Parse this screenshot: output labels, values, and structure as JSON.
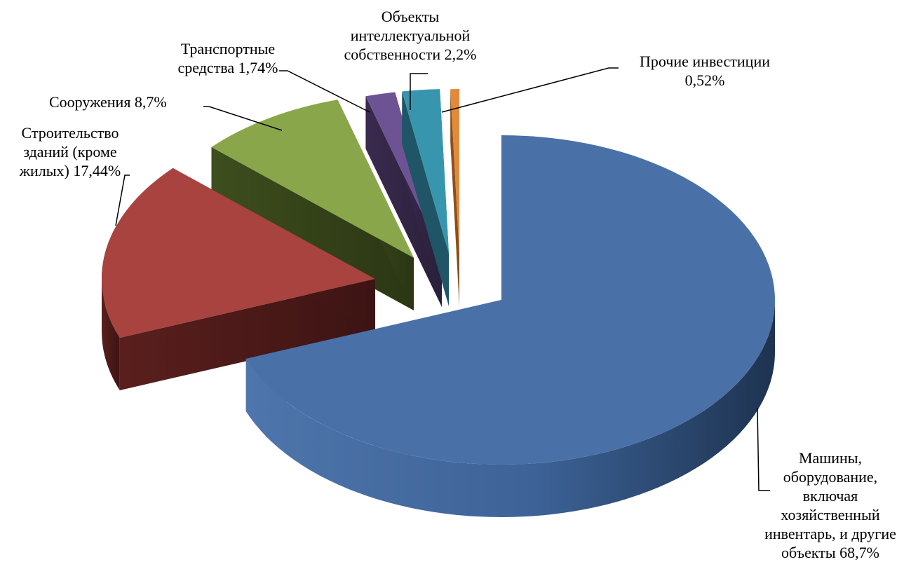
{
  "chart_data": {
    "type": "pie",
    "title": "",
    "style": "3d-exploded",
    "slices": [
      {
        "label": "Машины,\nоборудование,\nвключая\nхозяйственный\nинвентарь, и другие\nобъекты 68,7%",
        "value": 68.7,
        "color": "#4A70A8"
      },
      {
        "label": "Строительство\nзданий (кроме\nжилых) 17,44%",
        "value": 17.44,
        "color": "#A8433F"
      },
      {
        "label": "Сооружения 8,7%",
        "value": 8.7,
        "color": "#89A64B"
      },
      {
        "label": "Транспортные\nсредства 1,74%",
        "value": 1.74,
        "color": "#6E5394"
      },
      {
        "label": "Объекты\nинтеллектуальной\nсобственности 2,2%",
        "value": 2.2,
        "color": "#3796AE"
      },
      {
        "label": "Прочие инвестиции\n0,52%",
        "value": 0.52,
        "color": "#E28A3A"
      }
    ]
  }
}
